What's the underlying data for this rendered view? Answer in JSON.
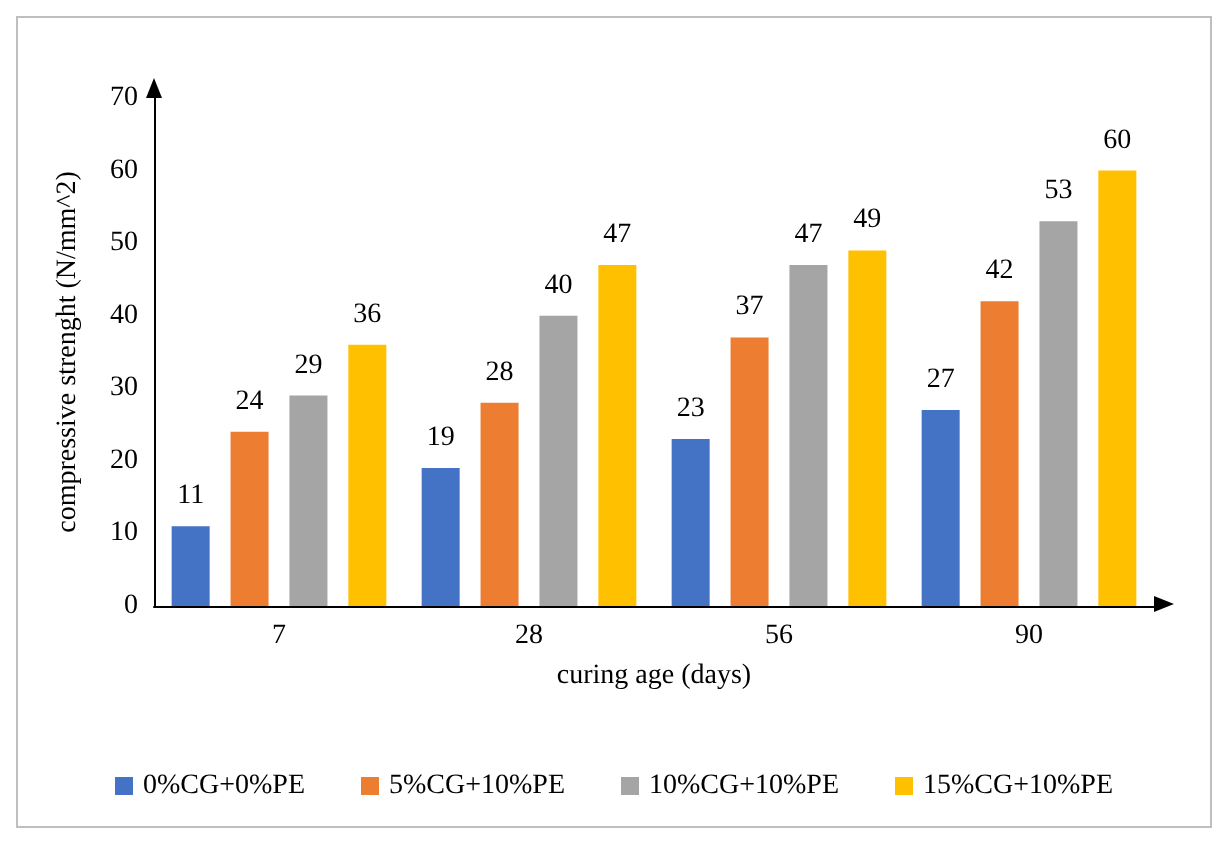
{
  "chart_data": {
    "type": "bar",
    "xlabel": "curing age (days)",
    "ylabel": "compressive strenght (N/mm^2)",
    "categories": [
      "7",
      "28",
      "56",
      "90"
    ],
    "series": [
      {
        "name": "0%CG+0%PE",
        "color": "#4472c4",
        "values": [
          11,
          19,
          23,
          27
        ]
      },
      {
        "name": "5%CG+10%PE",
        "color": "#ed7d31",
        "values": [
          24,
          28,
          37,
          42
        ]
      },
      {
        "name": "10%CG+10%PE",
        "color": "#a5a5a5",
        "values": [
          29,
          40,
          47,
          53
        ]
      },
      {
        "name": "15%CG+10%PE",
        "color": "#ffc000",
        "values": [
          36,
          47,
          49,
          60
        ]
      }
    ],
    "ylim": [
      0,
      70
    ],
    "yticks": [
      0,
      10,
      20,
      30,
      40,
      50,
      60,
      70
    ],
    "data_labels": true,
    "grid": false,
    "legend": "bottom"
  }
}
